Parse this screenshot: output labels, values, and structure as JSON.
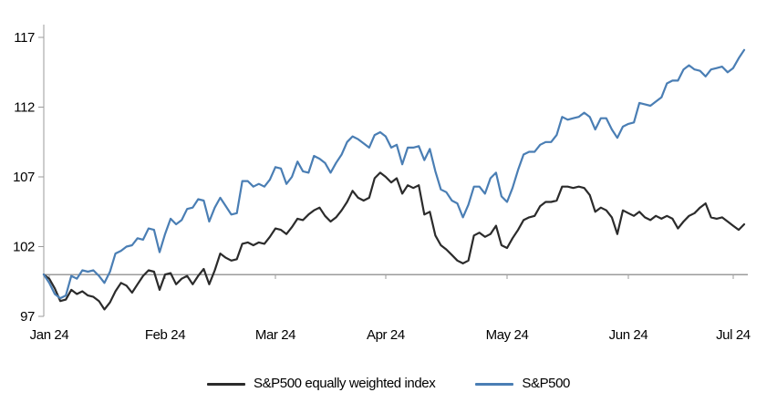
{
  "chart_data": {
    "type": "line",
    "title": "",
    "description": "Daily index values rebased to 100 at the start, January 2024 to early July 2024",
    "x_axis": {
      "tick_labels": [
        "Jan 24",
        "Feb 24",
        "Mar 24",
        "Apr 24",
        "May 24",
        "Jun 24",
        "Jul 24"
      ],
      "tick_indices": [
        1,
        22,
        42,
        62,
        84,
        106,
        125
      ]
    },
    "y_axis": {
      "ticks": [
        97,
        102,
        107,
        112,
        117
      ],
      "range": [
        97,
        118.4
      ],
      "baseline": 100
    },
    "legend": {
      "position": "bottom-center"
    },
    "colors": {
      "axis": "#9b9b9b",
      "text": "#000000",
      "background": "#ffffff"
    },
    "series": [
      {
        "name": "S&P500 equally weighted index",
        "color": "#2b2b2b",
        "values": [
          100.0,
          99.7,
          99.0,
          98.1,
          98.2,
          98.9,
          98.6,
          98.8,
          98.5,
          98.4,
          98.1,
          97.5,
          98.0,
          98.8,
          99.4,
          99.2,
          98.7,
          99.3,
          99.9,
          100.3,
          100.2,
          98.9,
          100.0,
          100.1,
          99.3,
          99.7,
          99.9,
          99.3,
          99.9,
          100.4,
          99.3,
          100.3,
          101.5,
          101.2,
          101.0,
          101.1,
          102.2,
          102.3,
          102.1,
          102.3,
          102.2,
          102.7,
          103.3,
          103.2,
          102.9,
          103.4,
          104.0,
          103.9,
          104.3,
          104.6,
          104.8,
          104.2,
          103.8,
          104.1,
          104.6,
          105.2,
          106.0,
          105.5,
          105.3,
          105.5,
          106.9,
          107.3,
          107.0,
          106.6,
          106.9,
          105.8,
          106.4,
          106.2,
          106.4,
          104.3,
          104.5,
          102.8,
          102.1,
          101.8,
          101.4,
          101.0,
          100.8,
          101.0,
          102.8,
          103.0,
          102.7,
          102.9,
          103.5,
          102.1,
          101.9,
          102.6,
          103.2,
          103.9,
          104.1,
          104.2,
          104.9,
          105.2,
          105.2,
          105.3,
          106.3,
          106.3,
          106.2,
          106.3,
          106.2,
          105.7,
          104.5,
          104.8,
          104.6,
          104.1,
          102.9,
          104.6,
          104.4,
          104.2,
          104.5,
          104.1,
          103.9,
          104.2,
          104.0,
          104.2,
          104.0,
          103.3,
          103.8,
          104.2,
          104.4,
          104.8,
          105.1,
          104.1,
          104.0,
          104.1,
          103.8,
          103.5,
          103.2,
          103.6
        ]
      },
      {
        "name": "S&P500",
        "color": "#4a7eb4",
        "values": [
          100.0,
          99.4,
          98.6,
          98.3,
          98.5,
          99.9,
          99.7,
          100.3,
          100.2,
          100.3,
          99.9,
          99.4,
          100.2,
          101.5,
          101.7,
          102.0,
          102.1,
          102.6,
          102.5,
          103.3,
          103.2,
          101.6,
          102.9,
          104.0,
          103.6,
          103.9,
          104.7,
          104.8,
          105.4,
          105.3,
          103.8,
          104.8,
          105.5,
          104.9,
          104.3,
          104.4,
          106.7,
          106.7,
          106.3,
          106.5,
          106.3,
          106.8,
          107.7,
          107.6,
          106.5,
          107.0,
          108.1,
          107.4,
          107.3,
          108.5,
          108.3,
          108.0,
          107.3,
          108.0,
          108.6,
          109.5,
          109.9,
          109.7,
          109.4,
          109.1,
          110.0,
          110.2,
          109.9,
          109.1,
          109.3,
          107.9,
          109.1,
          109.1,
          109.2,
          108.2,
          109.0,
          107.4,
          106.1,
          105.9,
          105.3,
          105.1,
          104.1,
          105.0,
          106.3,
          106.3,
          105.8,
          106.9,
          107.3,
          105.6,
          105.2,
          106.2,
          107.5,
          108.6,
          108.8,
          108.8,
          109.3,
          109.5,
          109.5,
          110.0,
          111.3,
          111.1,
          111.2,
          111.3,
          111.6,
          111.3,
          110.4,
          111.2,
          111.2,
          110.4,
          109.8,
          110.6,
          110.8,
          110.9,
          112.3,
          112.2,
          112.1,
          112.4,
          112.7,
          113.7,
          113.9,
          113.9,
          114.7,
          115.0,
          114.7,
          114.6,
          114.2,
          114.7,
          114.8,
          114.9,
          114.5,
          114.8,
          115.5,
          116.1
        ]
      }
    ]
  }
}
